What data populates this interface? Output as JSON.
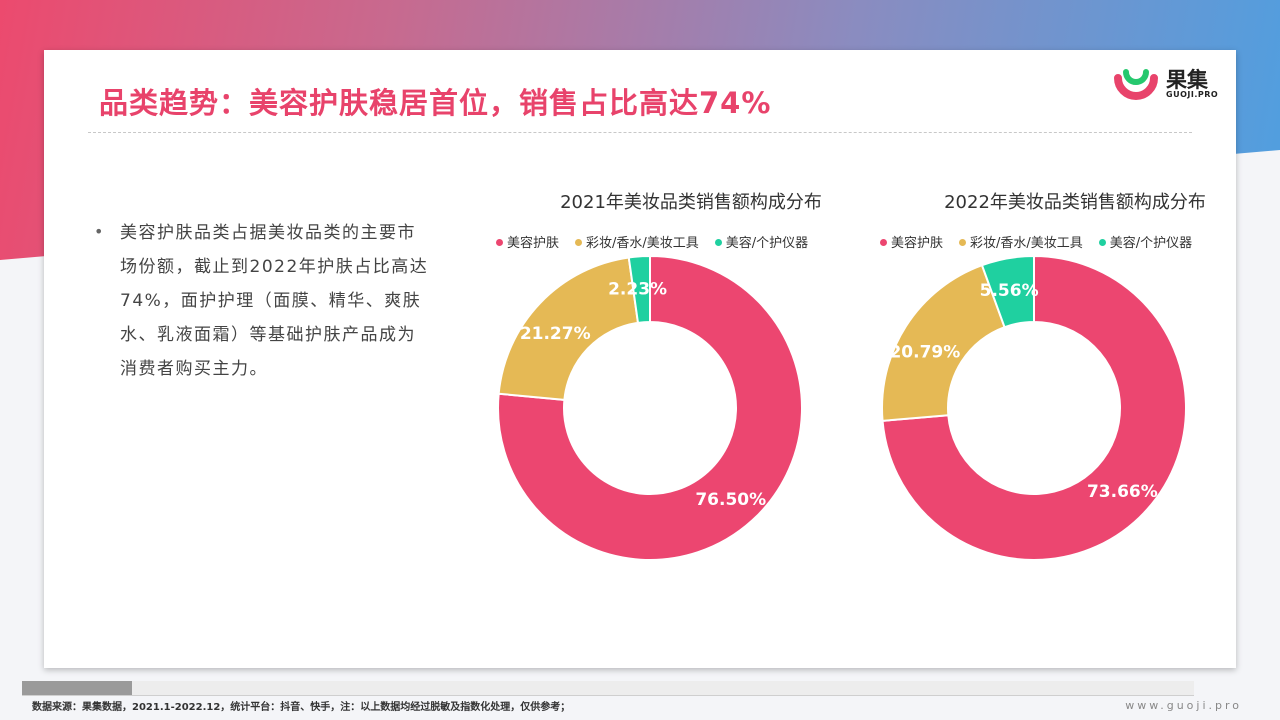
{
  "header": {
    "title": "品类趋势：美容护肤稳居首位，销售占比高达74%",
    "logo_name": "果集",
    "logo_sub": "GUOJI.PRO"
  },
  "bullet": {
    "text": "美容护肤品类占据美妆品类的主要市场份额，截止到2022年护肤占比高达74%，面护护理（面膜、精华、爽肤水、乳液面霜）等基础护肤产品成为消费者购买主力。"
  },
  "chart_data": [
    {
      "type": "pie",
      "title": "2021年美妆品类销售额构成分布",
      "categories": [
        "美容护肤",
        "彩妆/香水/美妆工具",
        "美容/个护仪器"
      ],
      "values": [
        76.5,
        21.27,
        2.23
      ],
      "labels": [
        "76.50%",
        "21.27%",
        "2.23%"
      ],
      "colors": [
        "#ec4670",
        "#e5b955",
        "#1fd0a0"
      ],
      "legend": "top"
    },
    {
      "type": "pie",
      "title": "2022年美妆品类销售额构成分布",
      "categories": [
        "美容护肤",
        "彩妆/香水/美妆工具",
        "美容/个护仪器"
      ],
      "values": [
        73.66,
        20.79,
        5.56
      ],
      "labels": [
        "73.66%",
        "20.79%",
        "5.56%"
      ],
      "colors": [
        "#ec4670",
        "#e5b955",
        "#1fd0a0"
      ],
      "legend": "top"
    }
  ],
  "footer": {
    "source": "数据来源：果集数据，2021.1-2022.12，统计平台：抖音、快手，注：以上数据均经过脱敏及指数化处理，仅供参考；",
    "site": "www.guoji.pro"
  }
}
